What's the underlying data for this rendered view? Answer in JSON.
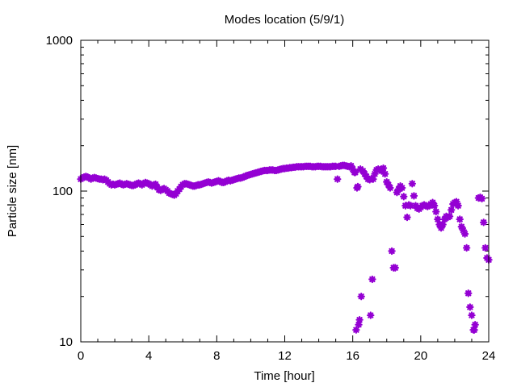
{
  "chart_data": {
    "type": "scatter",
    "title": "Modes location (5/9/1)",
    "xlabel": "Time [hour]",
    "ylabel": "Particle size [nm]",
    "xlim": [
      0,
      24
    ],
    "ylim": [
      10,
      1000
    ],
    "yscale": "log",
    "x_ticks": [
      0,
      4,
      8,
      12,
      16,
      20,
      24
    ],
    "x_tick_labels": [
      "0",
      "4",
      "8",
      "12",
      "16",
      "20",
      "24"
    ],
    "y_ticks": [
      10,
      100,
      1000
    ],
    "y_tick_labels": [
      "10",
      "100",
      "1000"
    ],
    "marker": "star",
    "color": "#9400d3",
    "grid": false,
    "points": [
      [
        0.0,
        120
      ],
      [
        0.1,
        122
      ],
      [
        0.2,
        124
      ],
      [
        0.3,
        125
      ],
      [
        0.4,
        124
      ],
      [
        0.5,
        122
      ],
      [
        0.6,
        120
      ],
      [
        0.7,
        122
      ],
      [
        0.8,
        123
      ],
      [
        0.9,
        122
      ],
      [
        1.0,
        121
      ],
      [
        1.1,
        120
      ],
      [
        1.2,
        120
      ],
      [
        1.3,
        119
      ],
      [
        1.4,
        120
      ],
      [
        1.5,
        118
      ],
      [
        1.6,
        115
      ],
      [
        1.7,
        112
      ],
      [
        1.8,
        110
      ],
      [
        1.9,
        111
      ],
      [
        2.0,
        110
      ],
      [
        2.1,
        111
      ],
      [
        2.2,
        112
      ],
      [
        2.3,
        113
      ],
      [
        2.4,
        111
      ],
      [
        2.5,
        110
      ],
      [
        2.6,
        111
      ],
      [
        2.7,
        112
      ],
      [
        2.8,
        111
      ],
      [
        2.9,
        110
      ],
      [
        3.0,
        109
      ],
      [
        3.1,
        109
      ],
      [
        3.2,
        110
      ],
      [
        3.3,
        112
      ],
      [
        3.4,
        113
      ],
      [
        3.5,
        112
      ],
      [
        3.6,
        110
      ],
      [
        3.7,
        112
      ],
      [
        3.8,
        114
      ],
      [
        3.9,
        113
      ],
      [
        4.0,
        112
      ],
      [
        4.1,
        110
      ],
      [
        4.2,
        108
      ],
      [
        4.3,
        110
      ],
      [
        4.4,
        111
      ],
      [
        4.5,
        106
      ],
      [
        4.6,
        102
      ],
      [
        4.7,
        101
      ],
      [
        4.8,
        103
      ],
      [
        4.9,
        104
      ],
      [
        5.0,
        102
      ],
      [
        5.1,
        100
      ],
      [
        5.2,
        97
      ],
      [
        5.3,
        96
      ],
      [
        5.4,
        95
      ],
      [
        5.5,
        94
      ],
      [
        5.6,
        96
      ],
      [
        5.7,
        100
      ],
      [
        5.8,
        103
      ],
      [
        5.9,
        107
      ],
      [
        6.0,
        110
      ],
      [
        6.1,
        112
      ],
      [
        6.2,
        112
      ],
      [
        6.3,
        111
      ],
      [
        6.4,
        110
      ],
      [
        6.5,
        109
      ],
      [
        6.6,
        108
      ],
      [
        6.7,
        108
      ],
      [
        6.8,
        109
      ],
      [
        6.9,
        110
      ],
      [
        7.0,
        110
      ],
      [
        7.1,
        111
      ],
      [
        7.2,
        112
      ],
      [
        7.3,
        113
      ],
      [
        7.4,
        114
      ],
      [
        7.5,
        115
      ],
      [
        7.6,
        114
      ],
      [
        7.7,
        113
      ],
      [
        7.8,
        114
      ],
      [
        7.9,
        115
      ],
      [
        8.0,
        116
      ],
      [
        8.1,
        117
      ],
      [
        8.2,
        116
      ],
      [
        8.3,
        114
      ],
      [
        8.4,
        114
      ],
      [
        8.5,
        115
      ],
      [
        8.6,
        117
      ],
      [
        8.7,
        118
      ],
      [
        8.8,
        117
      ],
      [
        8.9,
        118
      ],
      [
        9.0,
        119
      ],
      [
        9.1,
        120
      ],
      [
        9.2,
        121
      ],
      [
        9.3,
        122
      ],
      [
        9.4,
        122
      ],
      [
        9.5,
        123
      ],
      [
        9.6,
        124
      ],
      [
        9.7,
        126
      ],
      [
        9.8,
        127
      ],
      [
        9.9,
        128
      ],
      [
        10.0,
        129
      ],
      [
        10.1,
        130
      ],
      [
        10.2,
        131
      ],
      [
        10.3,
        132
      ],
      [
        10.4,
        133
      ],
      [
        10.5,
        134
      ],
      [
        10.6,
        135
      ],
      [
        10.7,
        136
      ],
      [
        10.8,
        137
      ],
      [
        10.9,
        137
      ],
      [
        11.0,
        137
      ],
      [
        11.1,
        138
      ],
      [
        11.2,
        138
      ],
      [
        11.3,
        138
      ],
      [
        11.4,
        137
      ],
      [
        11.5,
        137
      ],
      [
        11.6,
        138
      ],
      [
        11.7,
        139
      ],
      [
        11.8,
        140
      ],
      [
        11.9,
        141
      ],
      [
        12.0,
        141
      ],
      [
        12.1,
        142
      ],
      [
        12.2,
        142
      ],
      [
        12.3,
        143
      ],
      [
        12.4,
        143
      ],
      [
        12.5,
        144
      ],
      [
        12.6,
        144
      ],
      [
        12.7,
        145
      ],
      [
        12.8,
        145
      ],
      [
        12.9,
        145
      ],
      [
        13.0,
        145
      ],
      [
        13.1,
        145
      ],
      [
        13.2,
        146
      ],
      [
        13.3,
        146
      ],
      [
        13.4,
        146
      ],
      [
        13.5,
        146
      ],
      [
        13.6,
        145
      ],
      [
        13.7,
        145
      ],
      [
        13.8,
        145
      ],
      [
        13.9,
        146
      ],
      [
        14.0,
        146
      ],
      [
        14.1,
        146
      ],
      [
        14.2,
        145
      ],
      [
        14.3,
        145
      ],
      [
        14.4,
        145
      ],
      [
        14.5,
        145
      ],
      [
        14.6,
        145
      ],
      [
        14.7,
        145
      ],
      [
        14.8,
        146
      ],
      [
        14.9,
        146
      ],
      [
        15.0,
        146
      ],
      [
        15.1,
        120
      ],
      [
        15.2,
        146
      ],
      [
        15.3,
        147
      ],
      [
        15.4,
        148
      ],
      [
        15.5,
        148
      ],
      [
        15.6,
        147
      ],
      [
        15.7,
        146
      ],
      [
        15.8,
        145
      ],
      [
        15.9,
        147
      ],
      [
        16.0,
        140
      ],
      [
        16.1,
        133
      ],
      [
        16.15,
        133
      ],
      [
        16.2,
        12
      ],
      [
        16.25,
        105
      ],
      [
        16.3,
        107
      ],
      [
        16.35,
        13
      ],
      [
        16.4,
        14
      ],
      [
        16.45,
        140
      ],
      [
        16.5,
        20
      ],
      [
        16.6,
        136
      ],
      [
        16.7,
        130
      ],
      [
        16.8,
        125
      ],
      [
        16.9,
        120
      ],
      [
        17.0,
        119
      ],
      [
        17.05,
        15
      ],
      [
        17.1,
        121
      ],
      [
        17.15,
        26
      ],
      [
        17.2,
        120
      ],
      [
        17.3,
        130
      ],
      [
        17.4,
        138
      ],
      [
        17.5,
        140
      ],
      [
        17.6,
        138
      ],
      [
        17.7,
        136
      ],
      [
        17.8,
        142
      ],
      [
        17.9,
        130
      ],
      [
        18.0,
        115
      ],
      [
        18.1,
        110
      ],
      [
        18.2,
        105
      ],
      [
        18.3,
        40
      ],
      [
        18.4,
        31
      ],
      [
        18.5,
        31
      ],
      [
        18.6,
        98
      ],
      [
        18.7,
        103
      ],
      [
        18.8,
        108
      ],
      [
        18.9,
        105
      ],
      [
        19.0,
        92
      ],
      [
        19.1,
        80
      ],
      [
        19.2,
        67
      ],
      [
        19.3,
        81
      ],
      [
        19.4,
        80
      ],
      [
        19.5,
        112
      ],
      [
        19.6,
        93
      ],
      [
        19.7,
        80
      ],
      [
        19.8,
        77
      ],
      [
        19.9,
        76
      ],
      [
        20.0,
        78
      ],
      [
        20.1,
        80
      ],
      [
        20.2,
        81
      ],
      [
        20.3,
        80
      ],
      [
        20.4,
        79
      ],
      [
        20.5,
        80
      ],
      [
        20.6,
        82
      ],
      [
        20.7,
        84
      ],
      [
        20.8,
        80
      ],
      [
        20.9,
        73
      ],
      [
        21.0,
        65
      ],
      [
        21.1,
        60
      ],
      [
        21.2,
        57
      ],
      [
        21.3,
        60
      ],
      [
        21.4,
        65
      ],
      [
        21.5,
        68
      ],
      [
        21.6,
        67
      ],
      [
        21.7,
        68
      ],
      [
        21.8,
        75
      ],
      [
        21.9,
        82
      ],
      [
        22.0,
        84
      ],
      [
        22.1,
        85
      ],
      [
        22.2,
        80
      ],
      [
        22.3,
        65
      ],
      [
        22.4,
        58
      ],
      [
        22.5,
        55
      ],
      [
        22.6,
        52
      ],
      [
        22.7,
        42
      ],
      [
        22.8,
        21
      ],
      [
        22.9,
        17
      ],
      [
        23.0,
        15
      ],
      [
        23.1,
        12
      ],
      [
        23.15,
        12
      ],
      [
        23.2,
        13
      ],
      [
        23.4,
        90
      ],
      [
        23.5,
        91
      ],
      [
        23.6,
        89
      ],
      [
        23.7,
        62
      ],
      [
        23.8,
        42
      ],
      [
        23.9,
        36
      ],
      [
        24.0,
        35
      ]
    ]
  }
}
